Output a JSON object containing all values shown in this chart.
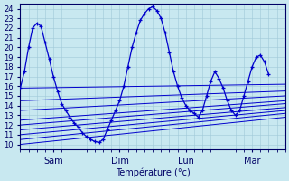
{
  "xlabel": "Température (°c)",
  "xtick_labels": [
    "Sam",
    "Dim",
    "Lun",
    "Mar"
  ],
  "xtick_positions": [
    24,
    72,
    120,
    168
  ],
  "ylim": [
    9.5,
    24.5
  ],
  "xlim": [
    0,
    192
  ],
  "yticks": [
    10,
    11,
    12,
    13,
    14,
    15,
    16,
    17,
    18,
    19,
    20,
    21,
    22,
    23,
    24
  ],
  "bg_color": "#c8e8f0",
  "grid_color": "#a0c8d8",
  "line_color": "#0000cc",
  "wavy_x": [
    0,
    3,
    6,
    9,
    12,
    15,
    18,
    21,
    24,
    27,
    30,
    33,
    36,
    39,
    42,
    45,
    48,
    51,
    54,
    57,
    60,
    63,
    66,
    69,
    72,
    75,
    78,
    81,
    84,
    87,
    90,
    93,
    96,
    99,
    102,
    105,
    108,
    111,
    114,
    117,
    120,
    123,
    126,
    129,
    132,
    135,
    138,
    141,
    144,
    147,
    150,
    153,
    156,
    159,
    162,
    165,
    168,
    171,
    174,
    177,
    180
  ],
  "wavy_y": [
    15.8,
    17.5,
    20.0,
    22.0,
    22.5,
    22.2,
    20.5,
    18.8,
    17.0,
    15.5,
    14.2,
    13.5,
    12.8,
    12.2,
    11.8,
    11.2,
    10.8,
    10.5,
    10.3,
    10.2,
    10.5,
    11.5,
    12.5,
    13.5,
    14.5,
    16.0,
    18.0,
    20.0,
    21.5,
    22.8,
    23.5,
    24.0,
    24.2,
    23.8,
    23.0,
    21.5,
    19.5,
    17.5,
    16.0,
    14.8,
    14.0,
    13.5,
    13.2,
    12.8,
    13.5,
    15.0,
    16.5,
    17.5,
    16.8,
    15.8,
    14.5,
    13.5,
    13.0,
    13.5,
    15.0,
    16.5,
    18.0,
    19.0,
    19.2,
    18.5,
    17.2
  ],
  "linear_lines": [
    {
      "x0": 0,
      "y0": 15.8,
      "x1": 192,
      "y1": 16.2
    },
    {
      "x0": 0,
      "y0": 14.5,
      "x1": 192,
      "y1": 15.5
    },
    {
      "x0": 0,
      "y0": 13.5,
      "x1": 192,
      "y1": 15.0
    },
    {
      "x0": 0,
      "y0": 12.5,
      "x1": 192,
      "y1": 14.5
    },
    {
      "x0": 0,
      "y0": 12.0,
      "x1": 192,
      "y1": 14.2
    },
    {
      "x0": 0,
      "y0": 11.5,
      "x1": 192,
      "y1": 13.8
    },
    {
      "x0": 0,
      "y0": 11.0,
      "x1": 192,
      "y1": 13.5
    },
    {
      "x0": 0,
      "y0": 10.5,
      "x1": 192,
      "y1": 13.2
    },
    {
      "x0": 0,
      "y0": 10.0,
      "x1": 192,
      "y1": 12.8
    }
  ]
}
